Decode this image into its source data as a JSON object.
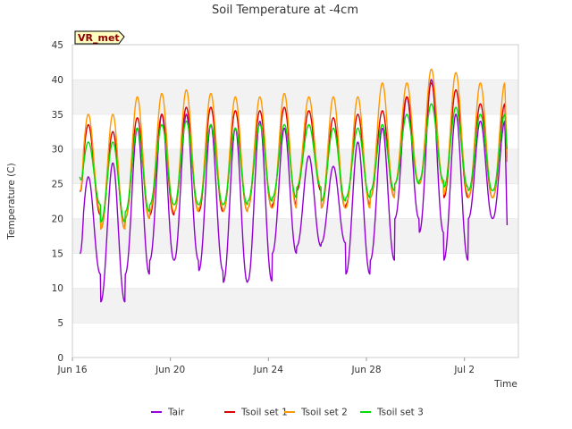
{
  "chart_data": {
    "type": "line",
    "title": "Soil Temperature at -4cm",
    "xlabel": "Time",
    "ylabel": "Temperature (C)",
    "badge": "VR_met",
    "x_ticks": [
      "Jun 16",
      "Jun 20",
      "Jun 24",
      "Jun 28",
      "Jul 2"
    ],
    "x_tick_days": [
      0,
      4,
      8,
      12,
      16
    ],
    "x_range_days": [
      0,
      18.2
    ],
    "y_ticks": [
      0,
      5,
      10,
      15,
      20,
      25,
      30,
      35,
      40,
      45
    ],
    "ylim": [
      0,
      45
    ],
    "grid": true,
    "legend_position": "bottom",
    "series": [
      {
        "name": "Tair",
        "color": "#9400d3",
        "daily_min": [
          12.0,
          8.0,
          12.0,
          14.0,
          14.0,
          12.5,
          10.8,
          11.0,
          15.0,
          16.0,
          16.5,
          12.0,
          14.0,
          20.0,
          18.0,
          14.0,
          20.0
        ],
        "daily_max": [
          26.0,
          28.0,
          33.0,
          35.0,
          35.0,
          33.5,
          33.0,
          34.0,
          33.0,
          29.0,
          27.5,
          31.0,
          33.0,
          37.5,
          40.0,
          35.0,
          34.0
        ],
        "start": 15.0,
        "end": 17.5
      },
      {
        "name": "Tsoil set 1",
        "color": "#dd0000",
        "daily_min": [
          20.5,
          18.5,
          20.0,
          20.5,
          21.0,
          21.0,
          21.0,
          21.5,
          22.0,
          24.0,
          21.5,
          22.0,
          23.0,
          25.0,
          25.0,
          23.0,
          23.0
        ],
        "daily_max": [
          33.5,
          32.5,
          34.5,
          35.0,
          36.0,
          36.0,
          35.5,
          35.5,
          36.0,
          35.5,
          34.5,
          35.0,
          35.5,
          37.5,
          39.5,
          38.5,
          36.5
        ],
        "start": 24.0,
        "end": 28.0
      },
      {
        "name": "Tsoil set 2",
        "color": "#ff9900",
        "daily_min": [
          21.0,
          18.5,
          20.0,
          21.0,
          21.0,
          21.5,
          21.0,
          21.5,
          21.5,
          24.5,
          21.5,
          21.5,
          23.0,
          25.0,
          25.0,
          23.5,
          23.0
        ],
        "daily_max": [
          35.0,
          35.0,
          37.5,
          38.0,
          38.5,
          38.0,
          37.5,
          37.5,
          38.0,
          37.5,
          37.5,
          37.5,
          39.5,
          39.5,
          41.5,
          41.0,
          39.5
        ],
        "start": 24.0,
        "end": 27.0
      },
      {
        "name": "Tsoil set 3",
        "color": "#00dd00",
        "daily_min": [
          22.0,
          19.5,
          21.0,
          22.0,
          22.0,
          22.0,
          22.0,
          22.5,
          23.0,
          24.5,
          22.5,
          23.0,
          24.0,
          25.0,
          25.5,
          24.5,
          24.0
        ],
        "daily_max": [
          31.0,
          31.0,
          33.0,
          33.5,
          34.0,
          33.5,
          33.0,
          33.5,
          33.5,
          33.5,
          33.0,
          33.0,
          33.5,
          35.0,
          36.5,
          36.0,
          35.0
        ],
        "start": 26.0,
        "end": 29.5
      }
    ],
    "x_start_day": 0.3,
    "x_end_day": 17.75,
    "peak_phase_day": 0.65
  }
}
